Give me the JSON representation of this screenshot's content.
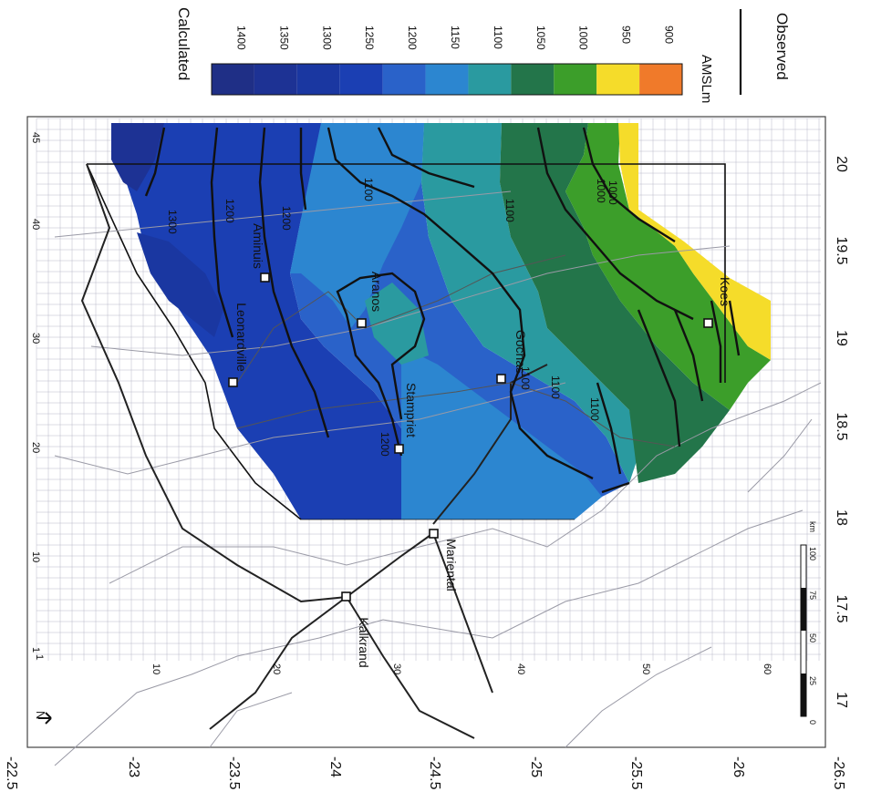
{
  "legend": {
    "title": "Calculated",
    "unit": "AMSLm",
    "observed_label": "Observed",
    "classes": [
      {
        "label": "1400",
        "color": "#1f2f86"
      },
      {
        "label": "1350",
        "color": "#1d3294"
      },
      {
        "label": "1300",
        "color": "#1a37a1"
      },
      {
        "label": "1250",
        "color": "#1b3fb3"
      },
      {
        "label": "1200",
        "color": "#2a62c9"
      },
      {
        "label": "1150",
        "color": "#2c86d0"
      },
      {
        "label": "1100",
        "color": "#2a9aa0"
      },
      {
        "label": "1050",
        "color": "#23754a"
      },
      {
        "label": "1000",
        "color": "#3c9e2a"
      },
      {
        "label": "950",
        "color": "#f5dc2a"
      },
      {
        "label": "900",
        "color": "#f07a2a"
      }
    ]
  },
  "axes": {
    "longitude_ticks": [
      "17",
      "17.5",
      "18",
      "18.5",
      "19",
      "19.5",
      "20"
    ],
    "latitude_ticks": [
      "-22.5",
      "-23",
      "-23.5",
      "-24",
      "-24.5",
      "-25",
      "-25.5",
      "-26",
      "-26.5"
    ],
    "grid_col_labels": [
      "1",
      "10",
      "20",
      "30",
      "40",
      "45"
    ],
    "grid_row_labels": [
      "1",
      "10",
      "20",
      "30",
      "40",
      "50",
      "60"
    ]
  },
  "places": {
    "kalkrand": "Kalkrand",
    "mariental": "Mariental",
    "gochas": "Gochas",
    "koes": "Koes",
    "aranos": "Aranos",
    "leonardville": "Leonardville",
    "aminuis": "Aminuis",
    "stampriet": "Stampriet"
  },
  "contour_labels": [
    "1300",
    "1200",
    "1200",
    "1100",
    "1100",
    "1100",
    "1100",
    "1100",
    "1000",
    "1000",
    "1200"
  ],
  "scale_bar": {
    "ticks": [
      "0",
      "25",
      "50",
      "75",
      "100"
    ],
    "unit": "km"
  },
  "north_arrow": {
    "label": "N"
  },
  "colors": {
    "grid": "#b8b8c8",
    "roads": "#222222",
    "rivers": "#9a9aa6"
  }
}
